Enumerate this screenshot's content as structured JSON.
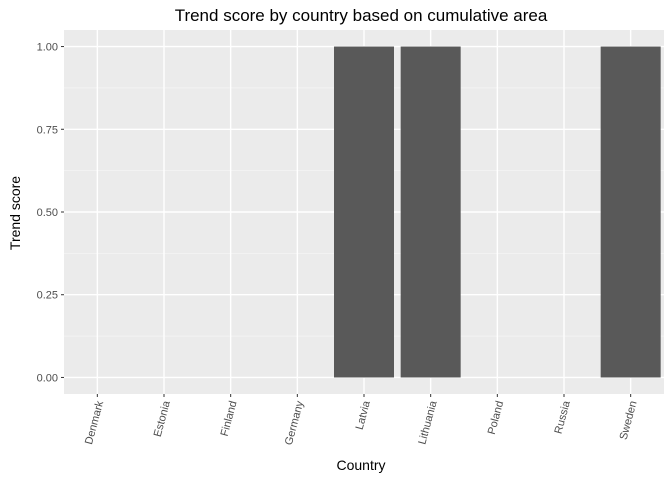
{
  "chart_data": {
    "type": "bar",
    "title": "Trend score by country based on cumulative area",
    "xlabel": "Country",
    "ylabel": "Trend score",
    "categories": [
      "Denmark",
      "Estonia",
      "Finland",
      "Germany",
      "Latvia",
      "Lithuania",
      "Poland",
      "Russia",
      "Sweden"
    ],
    "values": [
      0,
      0,
      0,
      0,
      1,
      1,
      0,
      0,
      1
    ],
    "ylim": [
      -0.05,
      1.05
    ],
    "yticks": [
      0,
      0.25,
      0.5,
      0.75,
      1
    ],
    "ytick_labels": [
      "0.00",
      "0.25",
      "0.50",
      "0.75",
      "1.00"
    ],
    "grid": true,
    "legend": "none",
    "colors": {
      "bar": "#595959",
      "panel": "#ebebeb",
      "grid_major": "#ffffff",
      "grid_minor": "#f5f5f5",
      "tick_text": "#4d4d4d"
    }
  }
}
